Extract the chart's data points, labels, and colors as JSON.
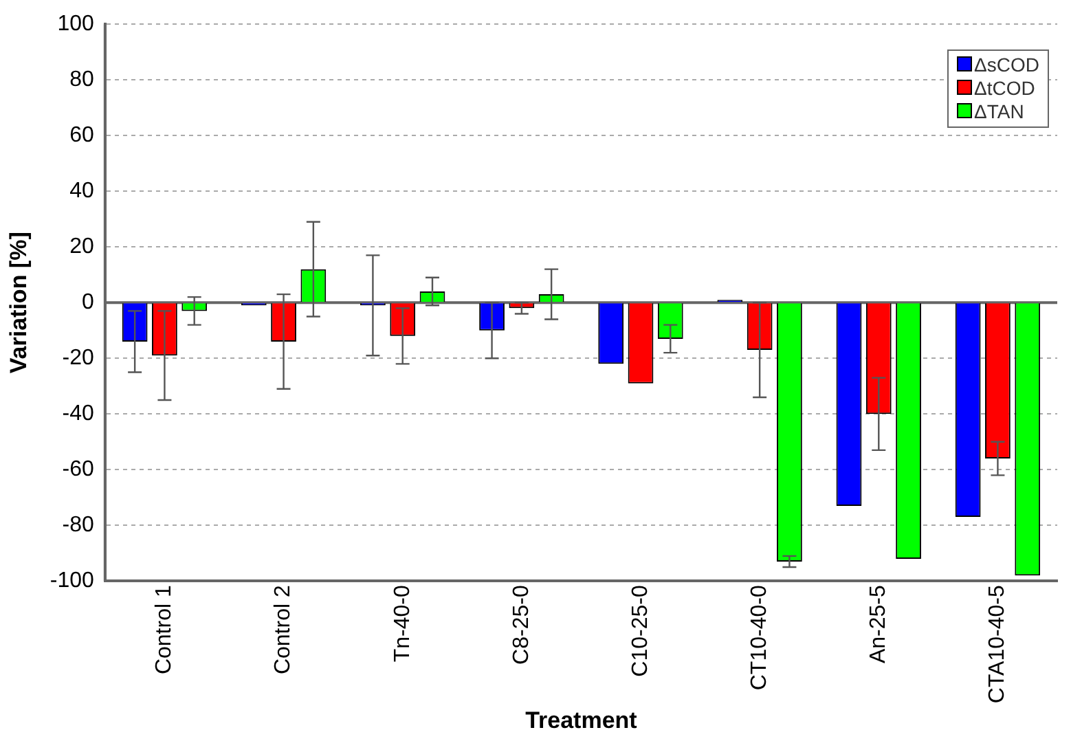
{
  "chart_data": {
    "type": "bar",
    "xlabel": "Treatment",
    "ylabel": "Variation [%]",
    "categories": [
      "Control 1",
      "Control 2",
      "Tn-40-0",
      "C8-25-0",
      "C10-25-0",
      "CT10-40-0",
      "An-25-5",
      "CTA10-40-5"
    ],
    "series": [
      {
        "name": "ΔsCOD",
        "color": "#0000ff",
        "values": [
          -14,
          -1,
          -1,
          -10,
          -22,
          1,
          -73,
          -77
        ],
        "errors": [
          11,
          null,
          18,
          10,
          null,
          null,
          null,
          null
        ]
      },
      {
        "name": "ΔtCOD",
        "color": "#ff0000",
        "values": [
          -19,
          -14,
          -12,
          -2,
          -29,
          -17,
          -40,
          -56
        ],
        "errors": [
          16,
          17,
          10,
          2,
          null,
          17,
          13,
          6
        ]
      },
      {
        "name": "ΔTAN",
        "color": "#00ff00",
        "values": [
          -3,
          12,
          4,
          3,
          -13,
          -93,
          -92,
          -98
        ],
        "errors": [
          5,
          17,
          5,
          9,
          5,
          2,
          null,
          null
        ]
      }
    ],
    "ylim": [
      -100,
      100
    ],
    "yticks": [
      -100,
      -80,
      -60,
      -40,
      -20,
      0,
      20,
      40,
      60,
      80,
      100
    ],
    "grid": "y",
    "legend": "top right"
  }
}
